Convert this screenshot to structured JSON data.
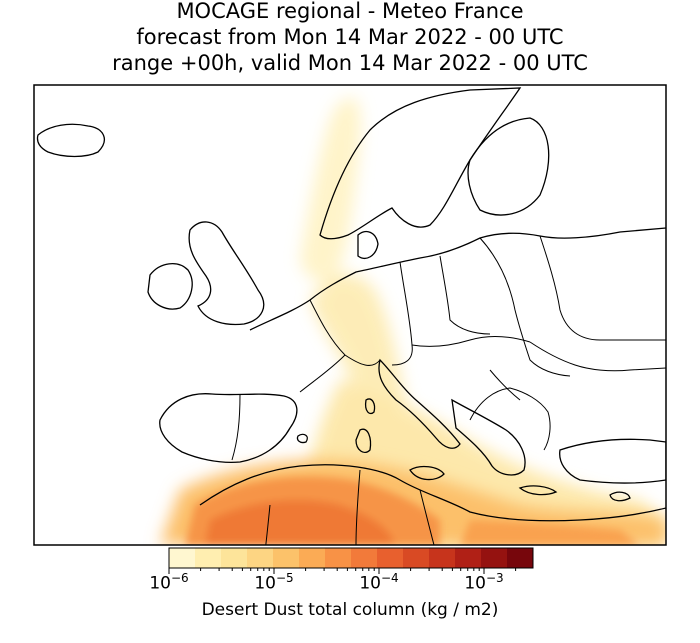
{
  "title": {
    "line1": "MOCAGE regional - Meteo France",
    "line2": "forecast from Mon 14 Mar 2022 - 00 UTC",
    "line3": "range +00h, valid Mon 14 Mar 2022 - 00 UTC"
  },
  "colorbar": {
    "label": "Desert Dust total column (kg / m2)",
    "ticks": [
      {
        "base": "10",
        "exp": "−6"
      },
      {
        "base": "10",
        "exp": "−5"
      },
      {
        "base": "10",
        "exp": "−4"
      },
      {
        "base": "10",
        "exp": "−3"
      }
    ],
    "colors": [
      "#fff7d0",
      "#ffeeb0",
      "#fde49a",
      "#fdd583",
      "#fcc26a",
      "#fbab55",
      "#f89246",
      "#f27a3a",
      "#e8602e",
      "#d94a24",
      "#c7341c",
      "#b02016",
      "#951210",
      "#77060c"
    ]
  }
}
